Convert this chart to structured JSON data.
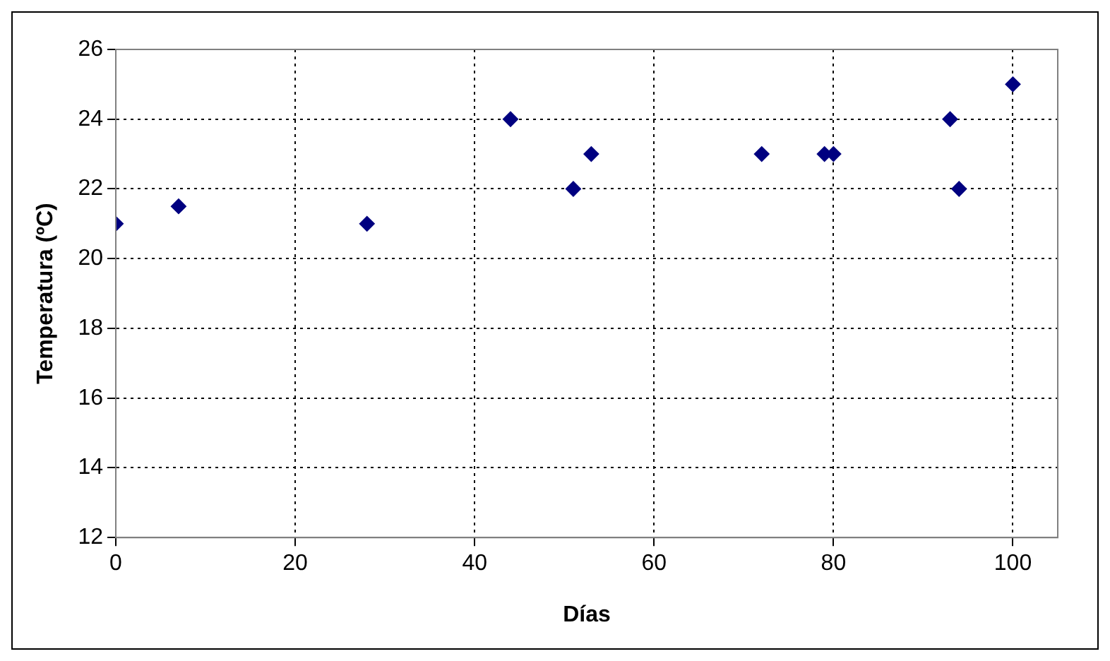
{
  "chart_data": {
    "type": "scatter",
    "xlabel": "Días",
    "ylabel": "Temperatura (ºC)",
    "x": [
      0,
      7,
      28,
      44,
      51,
      53,
      72,
      79,
      80,
      93,
      94,
      100
    ],
    "series": [
      {
        "color": "#000080",
        "values": [
          21,
          21.5,
          21,
          24,
          22,
          23,
          23,
          23,
          23,
          24,
          22,
          25
        ]
      }
    ],
    "xlim": [
      0,
      105
    ],
    "xticks": [
      0,
      20,
      40,
      60,
      80,
      100
    ],
    "ylim": [
      12,
      26
    ],
    "yticks": [
      12,
      14,
      16,
      18,
      20,
      22,
      24,
      26
    ],
    "grid": true,
    "legend": false,
    "marker": "diamond"
  }
}
